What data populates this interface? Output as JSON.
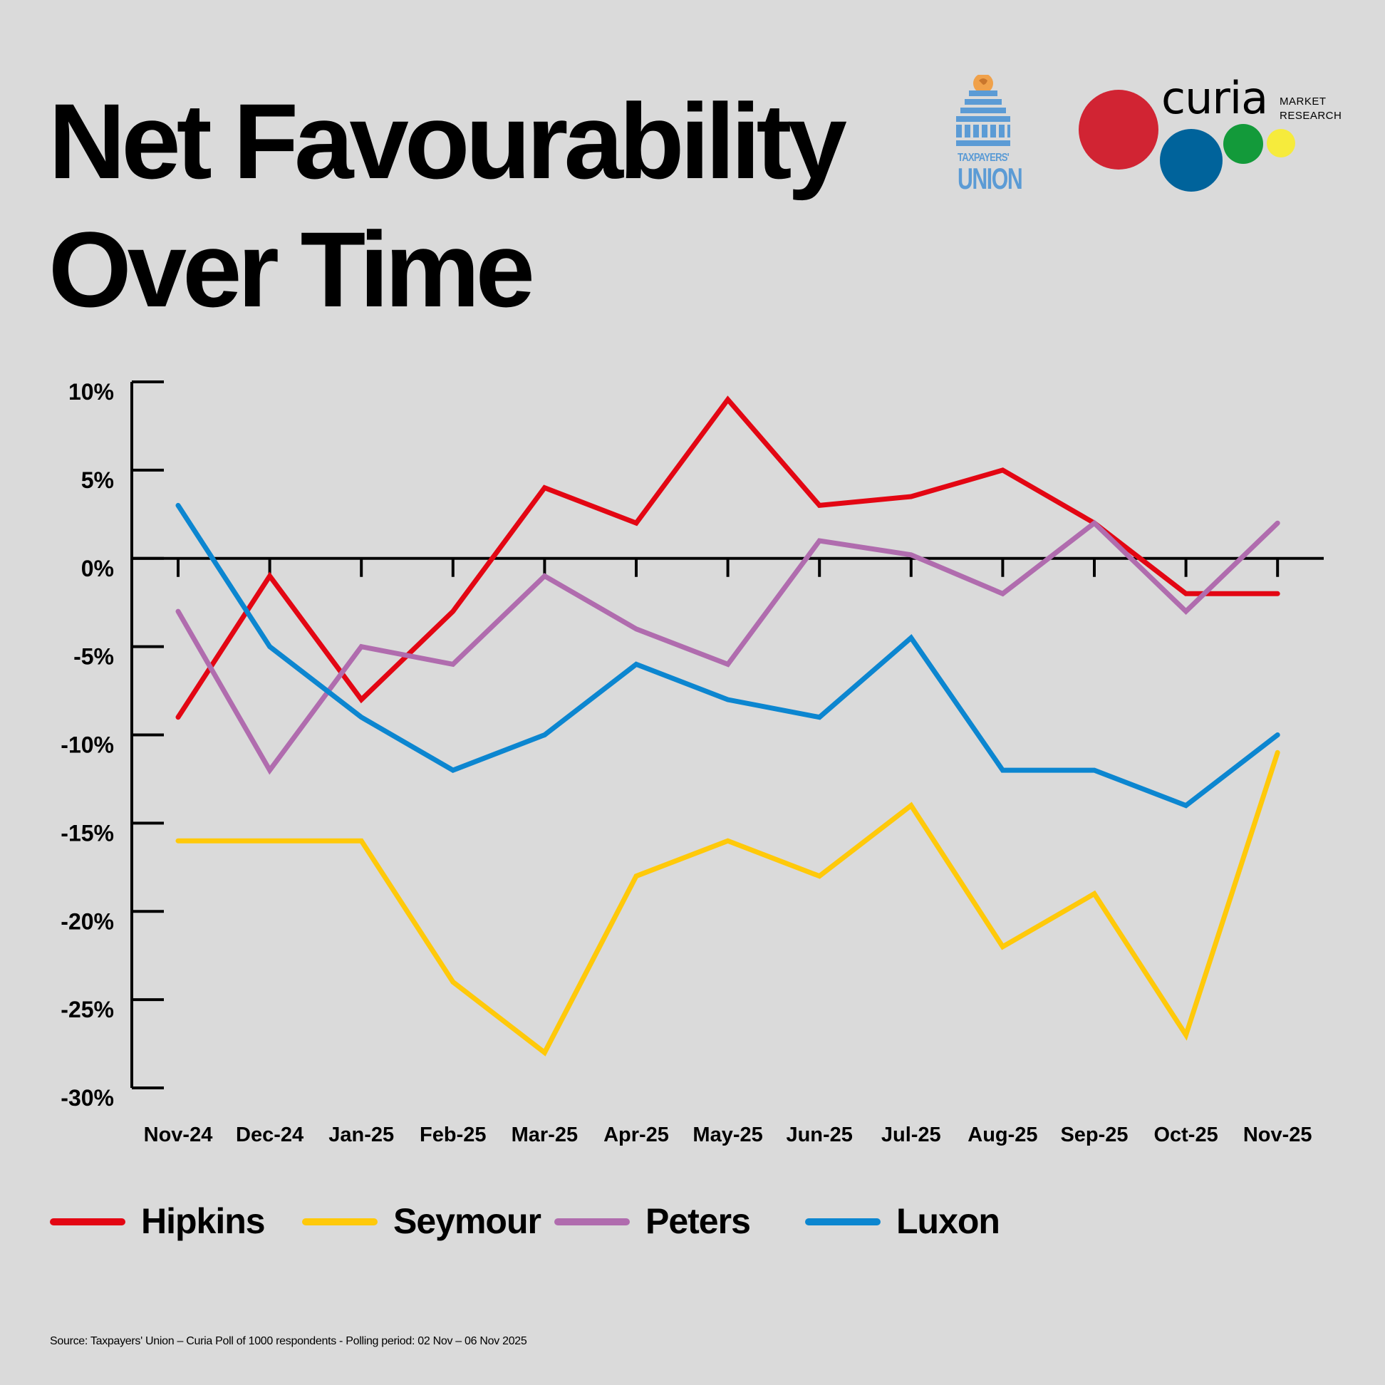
{
  "title_line1": "Net Favourability",
  "title_line2": "Over Time",
  "logos": {
    "taxpayers_line1": "TAXPAYERS'",
    "taxpayers_line2": "UNION",
    "curia_word": "curia",
    "curia_sub1": "MARKET",
    "curia_sub2": "RESEARCH"
  },
  "chart_data": {
    "type": "line",
    "categories": [
      "Nov-24",
      "Dec-24",
      "Jan-25",
      "Feb-25",
      "Mar-25",
      "Apr-25",
      "May-25",
      "Jun-25",
      "Jul-25",
      "Aug-25",
      "Sep-25",
      "Oct-25",
      "Nov-25"
    ],
    "ylim": [
      -30,
      10
    ],
    "yticks": [
      10,
      5,
      0,
      -5,
      -10,
      -15,
      -20,
      -25,
      -30
    ],
    "ytick_labels": [
      "10%",
      "5%",
      "0%",
      "-5%",
      "-10%",
      "-15%",
      "-20%",
      "-25%",
      "-30%"
    ],
    "grid": false,
    "legend_position": "bottom",
    "series": [
      {
        "name": "Hipkins",
        "color": "#e30613",
        "values": [
          -9,
          -1,
          -8,
          -3,
          4,
          2,
          9,
          3,
          3.5,
          5,
          2,
          -2,
          -2
        ]
      },
      {
        "name": "Seymour",
        "color": "#ffc90a",
        "values": [
          -16,
          -16,
          -16,
          -24,
          -28,
          -18,
          -16,
          -18,
          -14,
          -22,
          -19,
          -27,
          -11
        ]
      },
      {
        "name": "Peters",
        "color": "#b06cae",
        "values": [
          -3,
          -12,
          -5,
          -6,
          -1,
          -4,
          -6,
          1,
          0.2,
          -2,
          2,
          -3,
          2
        ]
      },
      {
        "name": "Luxon",
        "color": "#0c86d0",
        "values": [
          3,
          -5,
          -9,
          -12,
          -10,
          -6,
          -8,
          -9,
          -4.5,
          -12,
          -12,
          -14,
          -10
        ]
      }
    ]
  },
  "source": "Source: Taxpayers' Union – Curia Poll of 1000 respondents -  Polling period: 02 Nov – 06 Nov 2025"
}
